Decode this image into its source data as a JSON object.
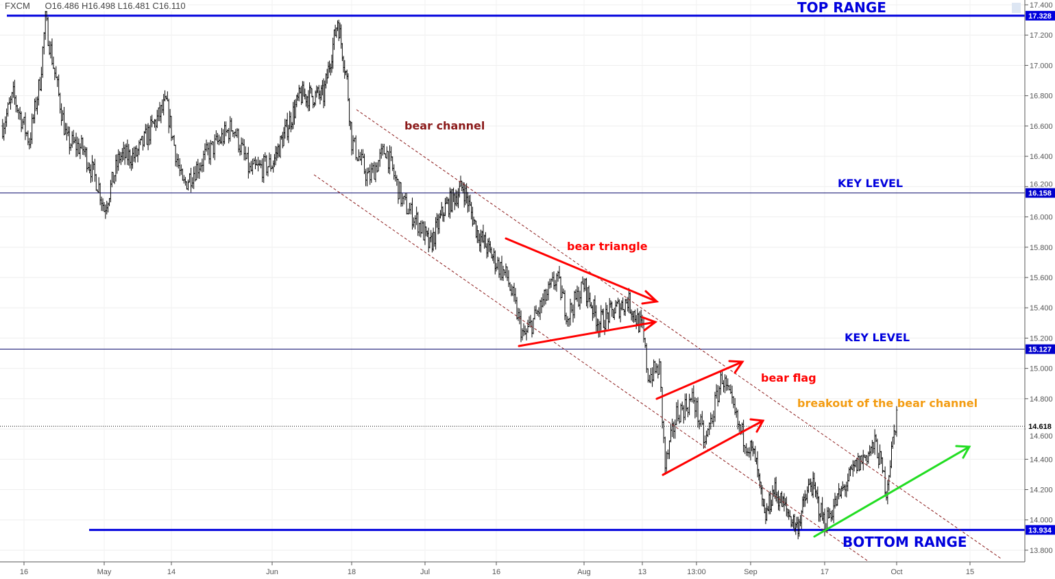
{
  "header": {
    "symbol": "FXCM",
    "ohlc": "O16.486  H16.498  L16.481  C16.110"
  },
  "chart_data": {
    "type": "candlestick",
    "ylim": [
      13.75,
      17.42
    ],
    "y_ticks": [
      "17.400",
      "17.200",
      "17.000",
      "16.800",
      "16.600",
      "16.400",
      "16.200",
      "16.000",
      "15.800",
      "15.600",
      "15.400",
      "15.200",
      "15.000",
      "14.800",
      "14.600",
      "14.400",
      "14.200",
      "14.000",
      "13.800"
    ],
    "x_ticks": [
      "16",
      "May",
      "14",
      "Jun",
      "18",
      "Jul",
      "16",
      "Aug",
      "13",
      "13:00",
      "Sep",
      "17",
      "Oct",
      "15"
    ],
    "price_path": [
      [
        "2018-04-12",
        16.6
      ],
      [
        "2018-04-14",
        16.8
      ],
      [
        "2018-04-17",
        16.5
      ],
      [
        "2018-04-19",
        16.9
      ],
      [
        "2018-04-20",
        17.3
      ],
      [
        "2018-04-22",
        16.9
      ],
      [
        "2018-04-24",
        16.5
      ],
      [
        "2018-04-27",
        16.45
      ],
      [
        "2018-04-30",
        16.2
      ],
      [
        "2018-05-01",
        16.05
      ],
      [
        "2018-05-04",
        16.4
      ],
      [
        "2018-05-07",
        16.4
      ],
      [
        "2018-05-13",
        16.75
      ],
      [
        "2018-05-16",
        16.2
      ],
      [
        "2018-05-20",
        16.4
      ],
      [
        "2018-05-25",
        16.6
      ],
      [
        "2018-05-28",
        16.3
      ],
      [
        "2018-06-01",
        16.35
      ],
      [
        "2018-06-07",
        16.8
      ],
      [
        "2018-06-12",
        16.8
      ],
      [
        "2018-06-15",
        17.3
      ],
      [
        "2018-06-17",
        16.9
      ],
      [
        "2018-06-18",
        16.5
      ],
      [
        "2018-06-21",
        16.25
      ],
      [
        "2018-06-24",
        16.45
      ],
      [
        "2018-06-27",
        16.1
      ],
      [
        "2018-06-30",
        15.95
      ],
      [
        "2018-07-02",
        15.8
      ],
      [
        "2018-07-05",
        16.05
      ],
      [
        "2018-07-09",
        16.2
      ],
      [
        "2018-07-12",
        15.9
      ],
      [
        "2018-07-15",
        15.75
      ],
      [
        "2018-07-18",
        15.6
      ],
      [
        "2018-07-21",
        15.2
      ],
      [
        "2018-07-27",
        15.6
      ],
      [
        "2018-07-29",
        15.35
      ],
      [
        "2018-08-01",
        15.55
      ],
      [
        "2018-08-04",
        15.3
      ],
      [
        "2018-08-10",
        15.45
      ],
      [
        "2018-08-13",
        15.25
      ],
      [
        "2018-08-14",
        14.95
      ],
      [
        "2018-08-16",
        15.0
      ],
      [
        "2018-08-17",
        14.35
      ],
      [
        "2018-08-19",
        14.7
      ],
      [
        "2018-08-22",
        14.8
      ],
      [
        "2018-08-24",
        14.5
      ],
      [
        "2018-08-27",
        14.95
      ],
      [
        "2018-08-30",
        14.6
      ],
      [
        "2018-09-02",
        14.4
      ],
      [
        "2018-09-04",
        14.0
      ],
      [
        "2018-09-06",
        14.2
      ],
      [
        "2018-09-11",
        13.95
      ],
      [
        "2018-09-14",
        14.25
      ],
      [
        "2018-09-17",
        13.98
      ],
      [
        "2018-09-23",
        14.35
      ],
      [
        "2018-09-27",
        14.5
      ],
      [
        "2018-09-29",
        14.2
      ],
      [
        "2018-10-01",
        14.7
      ]
    ],
    "levels": [
      {
        "value": 17.328,
        "label": "17.328",
        "name": "TOP RANGE",
        "color": "#0000dd",
        "style": "thick"
      },
      {
        "value": 16.158,
        "label": "16.158",
        "name": "KEY LEVEL",
        "color": "#0b0b6e",
        "style": "thin"
      },
      {
        "value": 15.127,
        "label": "15.127",
        "name": "KEY LEVEL",
        "color": "#0b0b6e",
        "style": "thin"
      },
      {
        "value": 14.618,
        "label": "14.618",
        "name": "",
        "color": "#000000",
        "style": "dotted"
      },
      {
        "value": 13.934,
        "label": "13.934",
        "name": "BOTTOM RANGE",
        "color": "#0000dd",
        "style": "thick"
      }
    ],
    "annotations": {
      "bear_channel": "bear channel",
      "bear_triangle": "bear triangle",
      "bear_flag": "bear flag",
      "breakout": "breakout of the bear channel"
    },
    "colors": {
      "range": "#0000dd",
      "channel": "#8b1a1a",
      "pattern": "#ff0000",
      "breakout_text": "#f39c12",
      "breakout_line": "#22dd22",
      "bars": "#000000"
    }
  }
}
